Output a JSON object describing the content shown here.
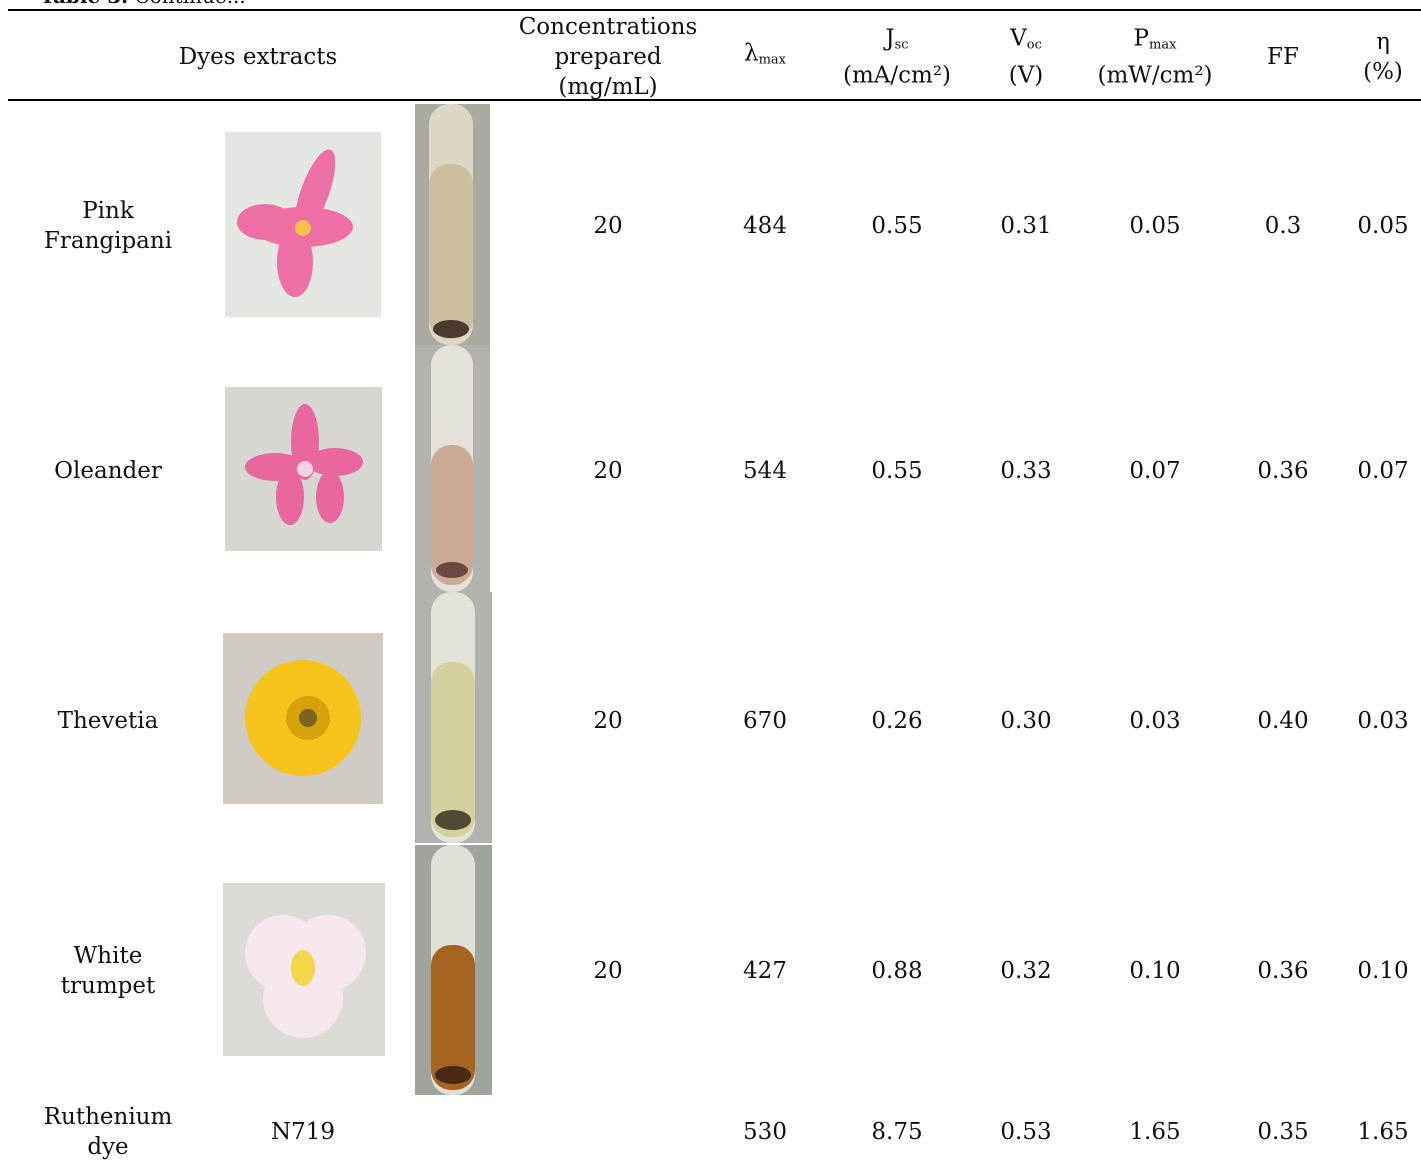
{
  "caption": {
    "label": "Table 3.",
    "text": "Continue..."
  },
  "table": {
    "headers": {
      "extracts": "Dyes extracts",
      "concentration": "Concentrations prepared (mg/mL)",
      "lambda": {
        "symbol": "λ",
        "sub": "max"
      },
      "jsc": {
        "symbol": "J",
        "sub": "sc",
        "unit": "(mA/cm²)"
      },
      "voc": {
        "symbol": "V",
        "sub": "oc",
        "unit": "(V)"
      },
      "pmax": {
        "symbol": "P",
        "sub": "max",
        "unit": "(mW/cm²)"
      },
      "ff": "FF",
      "eta": "η (%)"
    },
    "rows": [
      {
        "name": "Pink Frangipani",
        "concentration": "20",
        "lambda": "484",
        "jsc": "0.55",
        "voc": "0.31",
        "pmax": "0.05",
        "ff": "0.3",
        "eta": "0.05"
      },
      {
        "name": "Oleander",
        "concentration": "20",
        "lambda": "544",
        "jsc": "0.55",
        "voc": "0.33",
        "pmax": "0.07",
        "ff": "0.36",
        "eta": "0.07"
      },
      {
        "name": "Thevetia",
        "concentration": "20",
        "lambda": "670",
        "jsc": "0.26",
        "voc": "0.30",
        "pmax": "0.03",
        "ff": "0.40",
        "eta": "0.03"
      },
      {
        "name": "White trumpet",
        "concentration": "20",
        "lambda": "427",
        "jsc": "0.88",
        "voc": "0.32",
        "pmax": "0.10",
        "ff": "0.36",
        "eta": "0.10"
      },
      {
        "name": "Ruthenium dye",
        "extract": "N719",
        "lambda": "530",
        "jsc": "8.75",
        "voc": "0.53",
        "pmax": "1.65",
        "ff": "0.35",
        "eta": "1.65"
      }
    ]
  }
}
